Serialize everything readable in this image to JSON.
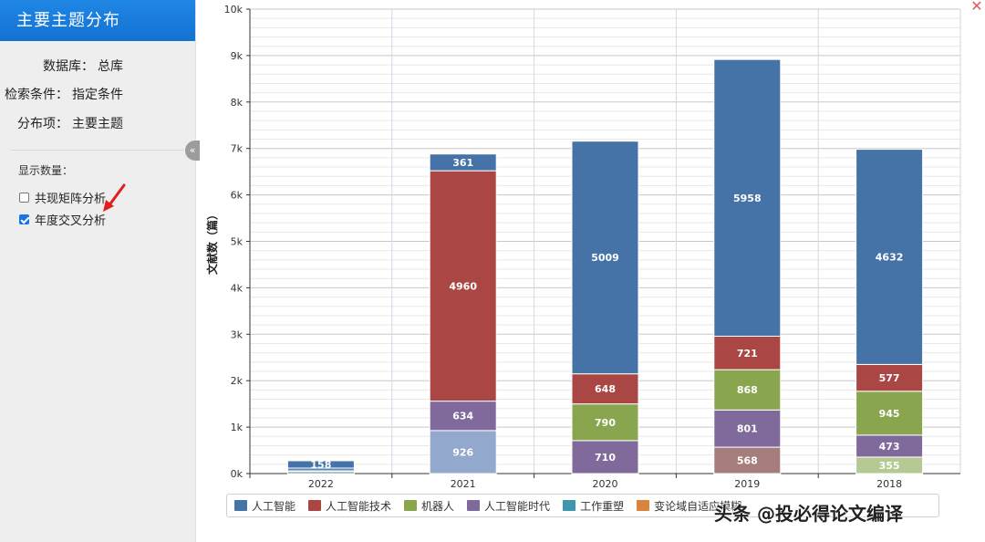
{
  "sidebar": {
    "title": "主要主题分布",
    "meta": [
      {
        "label": "数据库：",
        "value": "总库"
      },
      {
        "label": "检索条件：",
        "value": "指定条件"
      },
      {
        "label": "分布项：",
        "value": "主要主题"
      }
    ],
    "count_label": "显示数量：",
    "options": [
      {
        "label": "共现矩阵分析",
        "checked": false
      },
      {
        "label": "年度交叉分析",
        "checked": true
      }
    ],
    "collapse_glyph": "«"
  },
  "close_glyph": "✕",
  "watermark": "头条 @投必得论文编译",
  "chart_data": {
    "type": "bar",
    "stacked": true,
    "categories": [
      "2022",
      "2021",
      "2020",
      "2019",
      "2018"
    ],
    "ylabel": "文献数（篇）",
    "ylim": [
      0,
      10000
    ],
    "yticks": [
      "0k",
      "1k",
      "2k",
      "3k",
      "4k",
      "5k",
      "6k",
      "7k",
      "8k",
      "9k",
      "10k"
    ],
    "series": [
      {
        "name": "人工智能",
        "color": "#4572a7",
        "values": [
          158,
          361,
          5009,
          5958,
          4632
        ],
        "labels": [
          "158",
          "361",
          "5009",
          "5958",
          "4632"
        ]
      },
      {
        "name": "人工智能技术",
        "color": "#aa4643",
        "values": [
          0,
          4960,
          648,
          721,
          577
        ],
        "labels": [
          "",
          "4960",
          "648",
          "721",
          "577"
        ]
      },
      {
        "name": "机器人",
        "color": "#89a54e",
        "values": [
          0,
          0,
          790,
          868,
          945
        ],
        "labels": [
          "",
          "",
          "790",
          "868",
          "945"
        ]
      },
      {
        "name": "人工智能时代",
        "color": "#80699b",
        "values": [
          0,
          634,
          710,
          801,
          473
        ],
        "labels": [
          "",
          "634",
          "710",
          "801",
          "473"
        ]
      },
      {
        "name": "工作重塑",
        "color": "#3d96ae",
        "values": [
          18,
          0,
          0,
          0,
          0
        ],
        "labels": [
          "",
          "",
          "",
          "",
          ""
        ]
      },
      {
        "name": "变论域自适应模糊",
        "color": "#db843d",
        "values": [
          0,
          0,
          0,
          0,
          0
        ],
        "labels": [
          "",
          "",
          "",
          "",
          ""
        ]
      },
      {
        "name": "",
        "color": "#92a8cd",
        "values": [
          0,
          926,
          0,
          0,
          0
        ],
        "labels": [
          "",
          "926",
          "",
          "",
          ""
        ]
      },
      {
        "name": "",
        "color": "#a47d7c",
        "values": [
          0,
          0,
          0,
          568,
          0
        ],
        "labels": [
          "",
          "",
          "",
          "568",
          ""
        ]
      },
      {
        "name": "",
        "color": "#b5ca92",
        "values": [
          0,
          0,
          0,
          0,
          355
        ],
        "labels": [
          "",
          "",
          "",
          "",
          "355"
        ]
      },
      {
        "name": "",
        "color": "#4c8a76",
        "values": [
          40,
          0,
          0,
          0,
          0
        ],
        "labels": [
          "",
          "",
          "",
          "",
          ""
        ]
      },
      {
        "name": "",
        "color": "#5b86c0",
        "values": [
          60,
          0,
          0,
          0,
          0
        ],
        "labels": [
          "",
          "",
          "",
          "",
          ""
        ]
      }
    ],
    "stack_order": [
      [
        9,
        4,
        10,
        0
      ],
      [
        6,
        3,
        1,
        0
      ],
      [
        3,
        2,
        1,
        0
      ],
      [
        7,
        3,
        2,
        1,
        0
      ],
      [
        8,
        3,
        2,
        1,
        0
      ]
    ],
    "grid": true,
    "legend_position": "bottom",
    "legend_visible": [
      0,
      1,
      2,
      3,
      4,
      5
    ]
  }
}
